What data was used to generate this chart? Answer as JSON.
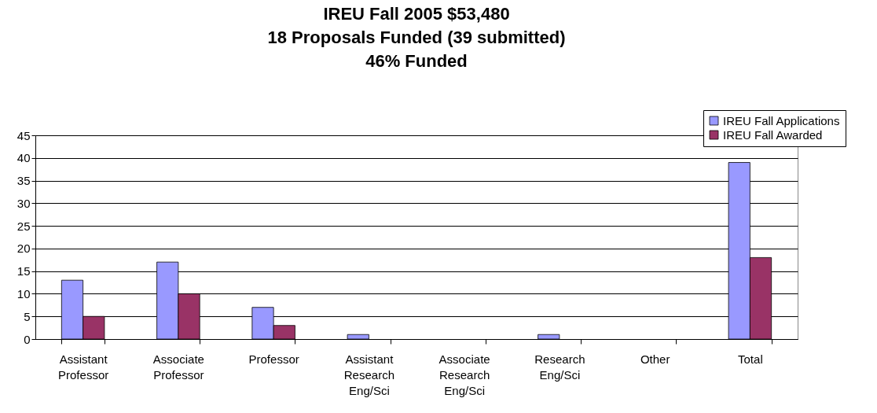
{
  "chart_data": {
    "type": "bar",
    "title": "IREU Fall 2005 $53,480\n18 Proposals Funded (39 submitted)\n46% Funded",
    "categories": [
      "Assistant Professor",
      "Associate Professor",
      "Professor",
      "Assistant Research Eng/Sci",
      "Associate Research Eng/Sci",
      "Research Eng/Sci",
      "Other",
      "Total"
    ],
    "series": [
      {
        "name": "IREU Fall Applications",
        "color": "#9999ff",
        "values": [
          13,
          17,
          7,
          1,
          0,
          1,
          0,
          39
        ]
      },
      {
        "name": "IREU Fall Awarded",
        "color": "#993366",
        "values": [
          5,
          10,
          3,
          0,
          0,
          0,
          0,
          18
        ]
      }
    ],
    "ylim": [
      0,
      45
    ],
    "yticks": [
      0,
      5,
      10,
      15,
      20,
      25,
      30,
      35,
      40,
      45
    ],
    "grid": "y",
    "legend": "top right"
  }
}
